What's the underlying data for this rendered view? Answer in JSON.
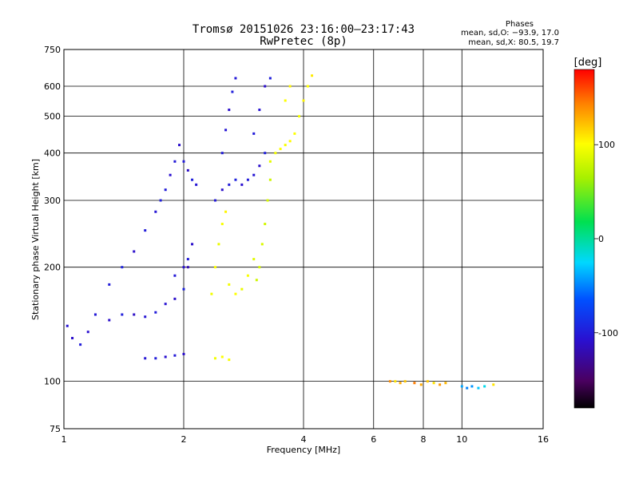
{
  "chart_data": {
    "type": "scatter",
    "title": "Tromsø 20151026 23:16:00–23:17:43",
    "subtitle": "RwPretec (8p)",
    "xlabel": "Frequency [MHz]",
    "ylabel": "Stationary phase Virtual Height [km]",
    "x_scale": "log",
    "y_scale": "log",
    "xlim": [
      1,
      16
    ],
    "ylim": [
      75,
      750
    ],
    "x_ticks": [
      1,
      2,
      4,
      6,
      8,
      10,
      16
    ],
    "x_tick_labels": [
      "1",
      "2",
      "4",
      "6",
      "8",
      "10",
      "16"
    ],
    "y_ticks": [
      75,
      100,
      200,
      300,
      400,
      500,
      600,
      750
    ],
    "y_tick_labels": [
      "75",
      "100",
      "200",
      "300",
      "400",
      "500",
      "600",
      "750"
    ],
    "grid": true,
    "phase_stats": {
      "heading": "Phases",
      "o_mode": "mean, sd,O: −93.9, 17.0",
      "x_mode": "mean, sd,X:  80.5, 19.7"
    },
    "colorbar": {
      "label": "[deg]",
      "range": [
        -180,
        180
      ],
      "ticks": [
        100,
        0,
        -100
      ],
      "tick_labels": [
        "100",
        "0",
        "-100"
      ],
      "colormap": "rainbow (black → purple → blue → cyan → green → yellow → red)"
    },
    "series": [
      {
        "points": [
          [
            1.02,
            140,
            -105
          ],
          [
            1.05,
            130,
            -110
          ],
          [
            1.1,
            125,
            -100
          ],
          [
            1.15,
            135,
            -108
          ],
          [
            1.2,
            150,
            -102
          ],
          [
            1.3,
            145,
            -110
          ],
          [
            1.4,
            150,
            -98
          ],
          [
            1.5,
            150,
            -112
          ],
          [
            1.6,
            148,
            -104
          ],
          [
            1.7,
            152,
            -100
          ],
          [
            1.8,
            160,
            -106
          ],
          [
            1.9,
            165,
            -110
          ],
          [
            2.0,
            175,
            -95
          ],
          [
            2.05,
            200,
            -120
          ],
          [
            2.1,
            230,
            -110
          ],
          [
            1.3,
            180,
            -100
          ],
          [
            1.4,
            200,
            -96
          ],
          [
            1.5,
            220,
            -110
          ],
          [
            1.6,
            250,
            -100
          ],
          [
            1.7,
            280,
            -104
          ],
          [
            1.75,
            300,
            -98
          ],
          [
            1.8,
            320,
            -100
          ],
          [
            1.85,
            350,
            -108
          ],
          [
            1.9,
            380,
            -102
          ],
          [
            1.95,
            420,
            -110
          ],
          [
            2.0,
            380,
            -100
          ],
          [
            2.05,
            360,
            -112
          ],
          [
            2.1,
            340,
            -98
          ],
          [
            2.15,
            330,
            -104
          ],
          [
            2.4,
            300,
            -102
          ],
          [
            2.5,
            320,
            -110
          ],
          [
            2.6,
            330,
            -100
          ],
          [
            2.7,
            340,
            -96
          ],
          [
            2.8,
            330,
            -108
          ],
          [
            2.9,
            340,
            -100
          ],
          [
            3.0,
            350,
            -104
          ],
          [
            3.1,
            370,
            -110
          ],
          [
            3.2,
            400,
            -98
          ],
          [
            2.5,
            400,
            -100
          ],
          [
            2.55,
            460,
            -104
          ],
          [
            2.6,
            520,
            -110
          ],
          [
            2.65,
            580,
            -98
          ],
          [
            2.7,
            630,
            -102
          ],
          [
            3.0,
            450,
            -100
          ],
          [
            3.1,
            520,
            -106
          ],
          [
            3.2,
            600,
            -110
          ],
          [
            3.3,
            630,
            -98
          ],
          [
            1.6,
            115,
            -104
          ],
          [
            1.7,
            115,
            -100
          ],
          [
            1.8,
            116,
            -108
          ],
          [
            1.9,
            117,
            -102
          ],
          [
            2.0,
            118,
            -110
          ],
          [
            1.9,
            190,
            -102
          ],
          [
            2.0,
            200,
            -108
          ],
          [
            2.05,
            210,
            -100
          ]
        ]
      },
      {
        "points": [
          [
            2.35,
            170,
            95
          ],
          [
            2.4,
            200,
            100
          ],
          [
            2.45,
            230,
            92
          ],
          [
            2.5,
            260,
            98
          ],
          [
            2.55,
            280,
            104
          ],
          [
            2.6,
            180,
            96
          ],
          [
            2.7,
            170,
            100
          ],
          [
            2.8,
            175,
            92
          ],
          [
            2.9,
            190,
            98
          ],
          [
            3.0,
            210,
            88
          ],
          [
            3.05,
            185,
            80
          ],
          [
            3.1,
            200,
            84
          ],
          [
            3.15,
            230,
            86
          ],
          [
            3.2,
            260,
            82
          ],
          [
            3.25,
            300,
            84
          ],
          [
            3.3,
            340,
            80
          ],
          [
            3.3,
            380,
            90
          ],
          [
            3.4,
            400,
            96
          ],
          [
            3.5,
            410,
            100
          ],
          [
            3.6,
            420,
            98
          ],
          [
            3.7,
            430,
            102
          ],
          [
            3.8,
            450,
            100
          ],
          [
            3.9,
            500,
            96
          ],
          [
            4.0,
            550,
            104
          ],
          [
            4.1,
            600,
            100
          ],
          [
            4.2,
            640,
            108
          ],
          [
            3.6,
            550,
            100
          ],
          [
            3.7,
            600,
            104
          ],
          [
            2.4,
            115,
            95
          ],
          [
            2.5,
            116,
            100
          ],
          [
            2.6,
            114,
            98
          ]
        ]
      },
      {
        "points": [
          [
            6.6,
            100,
            140
          ],
          [
            6.8,
            100,
            110
          ],
          [
            7.0,
            99,
            130
          ],
          [
            7.2,
            100,
            120
          ],
          [
            7.6,
            99,
            145
          ],
          [
            7.9,
            98,
            130
          ],
          [
            8.2,
            100,
            120
          ],
          [
            8.5,
            99,
            110
          ],
          [
            8.8,
            98,
            135
          ],
          [
            9.1,
            99,
            125
          ],
          [
            10.0,
            97,
            -40
          ],
          [
            10.3,
            96,
            -50
          ],
          [
            10.6,
            97,
            -45
          ],
          [
            11.0,
            96,
            -30
          ],
          [
            11.4,
            97,
            -20
          ],
          [
            12.0,
            98,
            110
          ]
        ]
      }
    ]
  }
}
